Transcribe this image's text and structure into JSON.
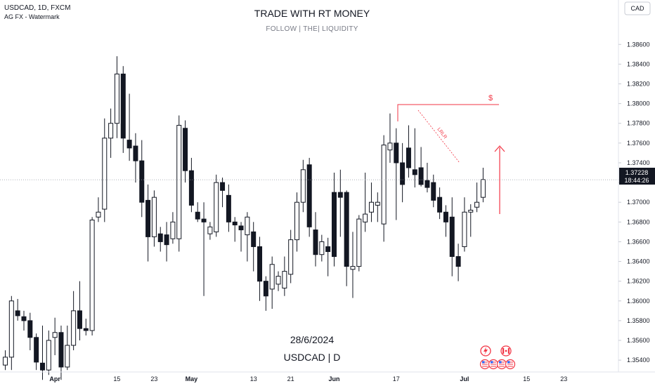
{
  "header": {
    "symbol_line": "USDCAD, 1D, FXCM",
    "indicator_line": "AG FX - Watermark"
  },
  "currency_button": "CAD",
  "watermark": {
    "title": "TRADE WITH RT MONEY",
    "subtitle": "FOLLOW   |   THE|  LIQUIDITY",
    "date": "28/6/2024",
    "pair": "USDCAD  |  D"
  },
  "price_label": {
    "price": "1.37228",
    "countdown": "18:44:26"
  },
  "annotations": {
    "dollar": "$",
    "diagonal_label": "LRLR"
  },
  "colors": {
    "up": "#ffffff",
    "down": "#131722",
    "wick": "#131722",
    "annotation": "#f23645",
    "price_line": "#9598a1"
  },
  "icons": [
    "lightning-icon",
    "canada-flag-icon",
    "us-flag-icon"
  ],
  "chart_data": {
    "type": "candlestick",
    "ylim": [
      1.3528,
      1.3905
    ],
    "yticks": [
      "1.38600",
      "1.38400",
      "1.38200",
      "1.38000",
      "1.37800",
      "1.37600",
      "1.37400",
      "1.37200",
      "1.37000",
      "1.36800",
      "1.36600",
      "1.36400",
      "1.36200",
      "1.36000",
      "1.35800",
      "1.35600",
      "1.35400"
    ],
    "xticks": [
      {
        "label": "Apr",
        "bar": 8
      },
      {
        "label": "15",
        "bar": 18
      },
      {
        "label": "23",
        "bar": 24
      },
      {
        "label": "May",
        "bar": 30
      },
      {
        "label": "13",
        "bar": 40
      },
      {
        "label": "21",
        "bar": 46
      },
      {
        "label": "Jun",
        "bar": 53
      },
      {
        "label": "17",
        "bar": 63
      },
      {
        "label": "Jul",
        "bar": 74
      },
      {
        "label": "15",
        "bar": 84
      },
      {
        "label": "23",
        "bar": 90
      }
    ],
    "current_price": 1.37228,
    "candles": [
      [
        1.3535,
        1.355,
        1.353,
        1.3543
      ],
      [
        1.3543,
        1.3605,
        1.353,
        1.36
      ],
      [
        1.359,
        1.3602,
        1.358,
        1.3585
      ],
      [
        1.3584,
        1.359,
        1.357,
        1.358
      ],
      [
        1.358,
        1.3588,
        1.355,
        1.3563
      ],
      [
        1.3563,
        1.3567,
        1.353,
        1.3538
      ],
      [
        1.3537,
        1.3575,
        1.352,
        1.353
      ],
      [
        1.353,
        1.357,
        1.3525,
        1.356
      ],
      [
        1.3563,
        1.3583,
        1.3545,
        1.3568
      ],
      [
        1.3568,
        1.3575,
        1.352,
        1.3533
      ],
      [
        1.3533,
        1.3575,
        1.353,
        1.3555
      ],
      [
        1.3555,
        1.361,
        1.355,
        1.359
      ],
      [
        1.359,
        1.362,
        1.356,
        1.3572
      ],
      [
        1.3572,
        1.3582,
        1.3565,
        1.357
      ],
      [
        1.357,
        1.3685,
        1.3565,
        1.3682
      ],
      [
        1.3685,
        1.3705,
        1.368,
        1.369
      ],
      [
        1.3693,
        1.3785,
        1.368,
        1.3765
      ],
      [
        1.3765,
        1.3795,
        1.3745,
        1.378
      ],
      [
        1.378,
        1.3848,
        1.3765,
        1.383
      ],
      [
        1.383,
        1.3838,
        1.375,
        1.3765
      ],
      [
        1.3763,
        1.381,
        1.3742,
        1.3755
      ],
      [
        1.3757,
        1.377,
        1.372,
        1.3742
      ],
      [
        1.3742,
        1.3763,
        1.3685,
        1.37
      ],
      [
        1.3702,
        1.3718,
        1.364,
        1.3665
      ],
      [
        1.3665,
        1.3712,
        1.3655,
        1.3705
      ],
      [
        1.3668,
        1.3675,
        1.365,
        1.366
      ],
      [
        1.3667,
        1.368,
        1.364,
        1.3657
      ],
      [
        1.3663,
        1.369,
        1.3658,
        1.368
      ],
      [
        1.3663,
        1.3788,
        1.365,
        1.3778
      ],
      [
        1.3775,
        1.3783,
        1.372,
        1.3732
      ],
      [
        1.3732,
        1.3745,
        1.369,
        1.3697
      ],
      [
        1.369,
        1.37,
        1.368,
        1.3683
      ],
      [
        1.3683,
        1.37,
        1.3605,
        1.368
      ],
      [
        1.3668,
        1.368,
        1.3662,
        1.3675
      ],
      [
        1.367,
        1.3728,
        1.3665,
        1.372
      ],
      [
        1.372,
        1.3725,
        1.3695,
        1.3712
      ],
      [
        1.3707,
        1.3718,
        1.367,
        1.368
      ],
      [
        1.368,
        1.3685,
        1.366,
        1.3677
      ],
      [
        1.3676,
        1.368,
        1.365,
        1.3672
      ],
      [
        1.3667,
        1.369,
        1.364,
        1.3685
      ],
      [
        1.367,
        1.368,
        1.363,
        1.3655
      ],
      [
        1.3655,
        1.3665,
        1.36,
        1.362
      ],
      [
        1.362,
        1.3625,
        1.359,
        1.3605
      ],
      [
        1.3612,
        1.3645,
        1.3592,
        1.3637
      ],
      [
        1.3617,
        1.363,
        1.361,
        1.3625
      ],
      [
        1.3613,
        1.3645,
        1.3605,
        1.363
      ],
      [
        1.3627,
        1.3672,
        1.3618,
        1.3662
      ],
      [
        1.3662,
        1.371,
        1.365,
        1.37
      ],
      [
        1.37,
        1.3743,
        1.369,
        1.3733
      ],
      [
        1.3738,
        1.3745,
        1.3665,
        1.3675
      ],
      [
        1.3672,
        1.369,
        1.3635,
        1.3647
      ],
      [
        1.3647,
        1.3667,
        1.364,
        1.366
      ],
      [
        1.3655,
        1.3664,
        1.3625,
        1.365
      ],
      [
        1.371,
        1.373,
        1.3635,
        1.3645
      ],
      [
        1.371,
        1.3733,
        1.3665,
        1.3705
      ],
      [
        1.371,
        1.3712,
        1.3615,
        1.3635
      ],
      [
        1.3632,
        1.367,
        1.3603,
        1.3635
      ],
      [
        1.3635,
        1.3687,
        1.363,
        1.3683
      ],
      [
        1.368,
        1.373,
        1.367,
        1.3688
      ],
      [
        1.369,
        1.372,
        1.368,
        1.37
      ],
      [
        1.3697,
        1.371,
        1.368,
        1.37
      ],
      [
        1.3678,
        1.3768,
        1.366,
        1.3758
      ],
      [
        1.3753,
        1.379,
        1.374,
        1.376
      ],
      [
        1.376,
        1.3775,
        1.3682,
        1.374
      ],
      [
        1.374,
        1.376,
        1.37,
        1.3718
      ],
      [
        1.3755,
        1.3778,
        1.3725,
        1.3735
      ],
      [
        1.3733,
        1.3775,
        1.3715,
        1.3728
      ],
      [
        1.3735,
        1.3756,
        1.3716,
        1.3718
      ],
      [
        1.3722,
        1.374,
        1.371,
        1.3715
      ],
      [
        1.372,
        1.3728,
        1.3695,
        1.3702
      ],
      [
        1.3705,
        1.3715,
        1.3683,
        1.369
      ],
      [
        1.369,
        1.3697,
        1.3665,
        1.368
      ],
      [
        1.3685,
        1.3705,
        1.3625,
        1.3645
      ],
      [
        1.3645,
        1.3658,
        1.362,
        1.3635
      ],
      [
        1.3655,
        1.3705,
        1.365,
        1.369
      ],
      [
        1.369,
        1.3698,
        1.3665,
        1.3692
      ],
      [
        1.3695,
        1.372,
        1.369,
        1.37
      ],
      [
        1.3705,
        1.3735,
        1.37,
        1.3723
      ]
    ]
  }
}
